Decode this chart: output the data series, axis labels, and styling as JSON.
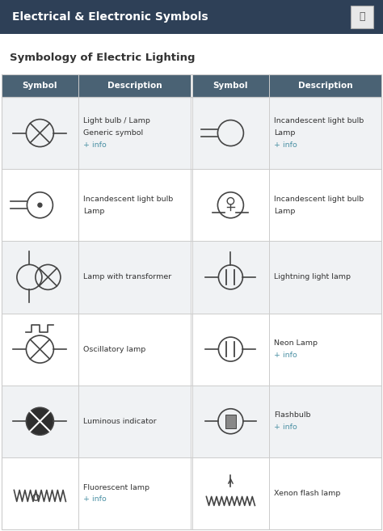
{
  "title_bar": "Electrical & Electronic Symbols",
  "subtitle": "Symbology of Electric Lighting",
  "title_bar_color": "#2e4057",
  "title_bar_text_color": "#ffffff",
  "subtitle_color": "#333333",
  "header_bg": "#4a6274",
  "header_text_color": "#ffffff",
  "grid_color": "#cccccc",
  "link_color": "#4a90a4",
  "symbol_color": "#444444",
  "rows": [
    {
      "left_desc": [
        "Light bulb / Lamp",
        "Generic symbol",
        "+ info"
      ],
      "right_desc": [
        "Incandescent light bulb",
        "Lamp",
        "+ info"
      ]
    },
    {
      "left_desc": [
        "Incandescent light bulb",
        "Lamp"
      ],
      "right_desc": [
        "Incandescent light bulb",
        "Lamp"
      ]
    },
    {
      "left_desc": [
        "Lamp with transformer"
      ],
      "right_desc": [
        "Lightning light lamp"
      ]
    },
    {
      "left_desc": [
        "Oscillatory lamp"
      ],
      "right_desc": [
        "Neon Lamp",
        "+ info"
      ]
    },
    {
      "left_desc": [
        "Luminous indicator"
      ],
      "right_desc": [
        "Flashbulb",
        "+ info"
      ]
    },
    {
      "left_desc": [
        "Fluorescent lamp",
        "+ info"
      ],
      "right_desc": [
        "Xenon flash lamp"
      ]
    }
  ],
  "figsize": [
    4.74,
    6.57
  ],
  "dpi": 100
}
